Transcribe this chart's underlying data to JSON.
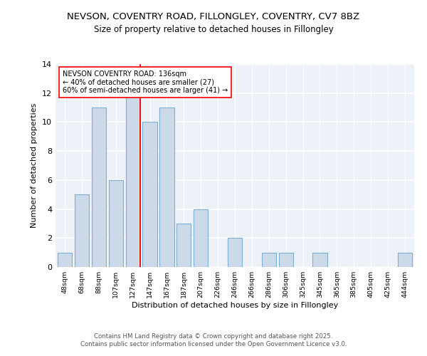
{
  "title_line1": "NEVSON, COVENTRY ROAD, FILLONGLEY, COVENTRY, CV7 8BZ",
  "title_line2": "Size of property relative to detached houses in Fillongley",
  "xlabel": "Distribution of detached houses by size in Fillongley",
  "ylabel": "Number of detached properties",
  "bins": [
    "48sqm",
    "68sqm",
    "88sqm",
    "107sqm",
    "127sqm",
    "147sqm",
    "167sqm",
    "187sqm",
    "207sqm",
    "226sqm",
    "246sqm",
    "266sqm",
    "286sqm",
    "306sqm",
    "325sqm",
    "345sqm",
    "365sqm",
    "385sqm",
    "405sqm",
    "425sqm",
    "444sqm"
  ],
  "values": [
    1,
    5,
    11,
    6,
    12,
    10,
    11,
    3,
    4,
    0,
    2,
    0,
    1,
    1,
    0,
    1,
    0,
    0,
    0,
    0,
    1
  ],
  "bar_color": "#ccd9e8",
  "bar_edge_color": "#7aaed4",
  "red_line_x": 4,
  "annotation_line1": "NEVSON COVENTRY ROAD: 136sqm",
  "annotation_line2": "← 40% of detached houses are smaller (27)",
  "annotation_line3": "60% of semi-detached houses are larger (41) →",
  "ylim": [
    0,
    14
  ],
  "yticks": [
    0,
    2,
    4,
    6,
    8,
    10,
    12,
    14
  ],
  "background_color": "#edf2f8",
  "footer_line1": "Contains HM Land Registry data © Crown copyright and database right 2025.",
  "footer_line2": "Contains public sector information licensed under the Open Government Licence v3.0."
}
